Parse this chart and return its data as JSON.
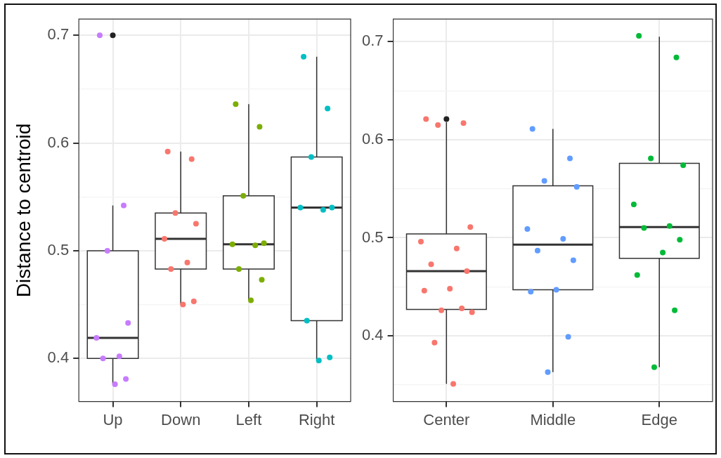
{
  "chart_data": [
    {
      "type": "box",
      "ylabel": "Distance to centroid",
      "categories": [
        "Up",
        "Down",
        "Left",
        "Right"
      ],
      "ylim": [
        0.36,
        0.715
      ],
      "yticks": [
        {
          "value": 0.4,
          "label": "0.4"
        },
        {
          "value": 0.45,
          "label": null
        },
        {
          "value": 0.5,
          "label": "0.5"
        },
        {
          "value": 0.55,
          "label": null
        },
        {
          "value": 0.6,
          "label": "0.6"
        },
        {
          "value": 0.65,
          "label": null
        },
        {
          "value": 0.7,
          "label": "0.7"
        }
      ],
      "grid": true,
      "boxes": [
        {
          "low": 0.376,
          "q1": 0.4,
          "median": 0.419,
          "q3": 0.5,
          "high": 0.542,
          "outliers": [
            0.7
          ]
        },
        {
          "low": 0.45,
          "q1": 0.483,
          "median": 0.511,
          "q3": 0.535,
          "high": 0.592
        },
        {
          "low": 0.454,
          "q1": 0.483,
          "median": 0.506,
          "q3": 0.551,
          "high": 0.636
        },
        {
          "low": 0.398,
          "q1": 0.435,
          "median": 0.54,
          "q3": 0.587,
          "high": 0.68
        }
      ],
      "series": [
        {
          "type": "scatter",
          "color": "#c77cff",
          "x": [
            "Up",
            "Up",
            "Up",
            "Up",
            "Up",
            "Up",
            "Up",
            "Up",
            "Up"
          ],
          "values": [
            0.7,
            0.542,
            0.5,
            0.433,
            0.419,
            0.402,
            0.4,
            0.381,
            0.376
          ]
        },
        {
          "type": "scatter",
          "color": "#f8766d",
          "x": [
            "Down",
            "Down",
            "Down",
            "Down",
            "Down",
            "Down",
            "Down",
            "Down",
            "Down"
          ],
          "values": [
            0.592,
            0.585,
            0.535,
            0.525,
            0.511,
            0.489,
            0.483,
            0.453,
            0.45
          ]
        },
        {
          "type": "scatter",
          "color": "#7cae00",
          "x": [
            "Left",
            "Left",
            "Left",
            "Left",
            "Left",
            "Left",
            "Left",
            "Left",
            "Left"
          ],
          "values": [
            0.636,
            0.615,
            0.551,
            0.507,
            0.506,
            0.505,
            0.483,
            0.473,
            0.454
          ]
        },
        {
          "type": "scatter",
          "color": "#00bfc4",
          "x": [
            "Right",
            "Right",
            "Right",
            "Right",
            "Right",
            "Right",
            "Right",
            "Right",
            "Right"
          ],
          "values": [
            0.68,
            0.632,
            0.587,
            0.54,
            0.54,
            0.538,
            0.435,
            0.401,
            0.398
          ]
        }
      ]
    },
    {
      "type": "box",
      "categories": [
        "Center",
        "Middle",
        "Edge"
      ],
      "ylim": [
        0.333,
        0.723
      ],
      "yticks": [
        {
          "value": 0.35,
          "label": null
        },
        {
          "value": 0.4,
          "label": "0.4"
        },
        {
          "value": 0.45,
          "label": null
        },
        {
          "value": 0.5,
          "label": "0.5"
        },
        {
          "value": 0.55,
          "label": null
        },
        {
          "value": 0.6,
          "label": "0.6"
        },
        {
          "value": 0.65,
          "label": null
        },
        {
          "value": 0.7,
          "label": "0.7"
        }
      ],
      "grid": true,
      "boxes": [
        {
          "low": 0.351,
          "q1": 0.427,
          "median": 0.466,
          "q3": 0.504,
          "high": 0.618,
          "outliers": [
            0.621
          ]
        },
        {
          "low": 0.363,
          "q1": 0.447,
          "median": 0.493,
          "q3": 0.553,
          "high": 0.611
        },
        {
          "low": 0.368,
          "q1": 0.479,
          "median": 0.511,
          "q3": 0.576,
          "high": 0.705
        }
      ],
      "series": [
        {
          "type": "scatter",
          "color": "#f8766d",
          "x": [
            "Center",
            "Center",
            "Center",
            "Center",
            "Center",
            "Center",
            "Center",
            "Center",
            "Center",
            "Center",
            "Center",
            "Center",
            "Center",
            "Center",
            "Center"
          ],
          "values": [
            0.621,
            0.617,
            0.615,
            0.511,
            0.496,
            0.489,
            0.473,
            0.466,
            0.448,
            0.446,
            0.428,
            0.426,
            0.424,
            0.393,
            0.351
          ]
        },
        {
          "type": "scatter",
          "color": "#619cff",
          "x": [
            "Middle",
            "Middle",
            "Middle",
            "Middle",
            "Middle",
            "Middle",
            "Middle",
            "Middle",
            "Middle",
            "Middle",
            "Middle",
            "Middle"
          ],
          "values": [
            0.611,
            0.581,
            0.558,
            0.552,
            0.509,
            0.499,
            0.487,
            0.477,
            0.447,
            0.445,
            0.399,
            0.363
          ]
        },
        {
          "type": "scatter",
          "color": "#00ba38",
          "x": [
            "Edge",
            "Edge",
            "Edge",
            "Edge",
            "Edge",
            "Edge",
            "Edge",
            "Edge",
            "Edge",
            "Edge",
            "Edge",
            "Edge"
          ],
          "values": [
            0.706,
            0.684,
            0.581,
            0.574,
            0.534,
            0.512,
            0.51,
            0.498,
            0.485,
            0.462,
            0.426,
            0.368
          ]
        }
      ]
    }
  ]
}
